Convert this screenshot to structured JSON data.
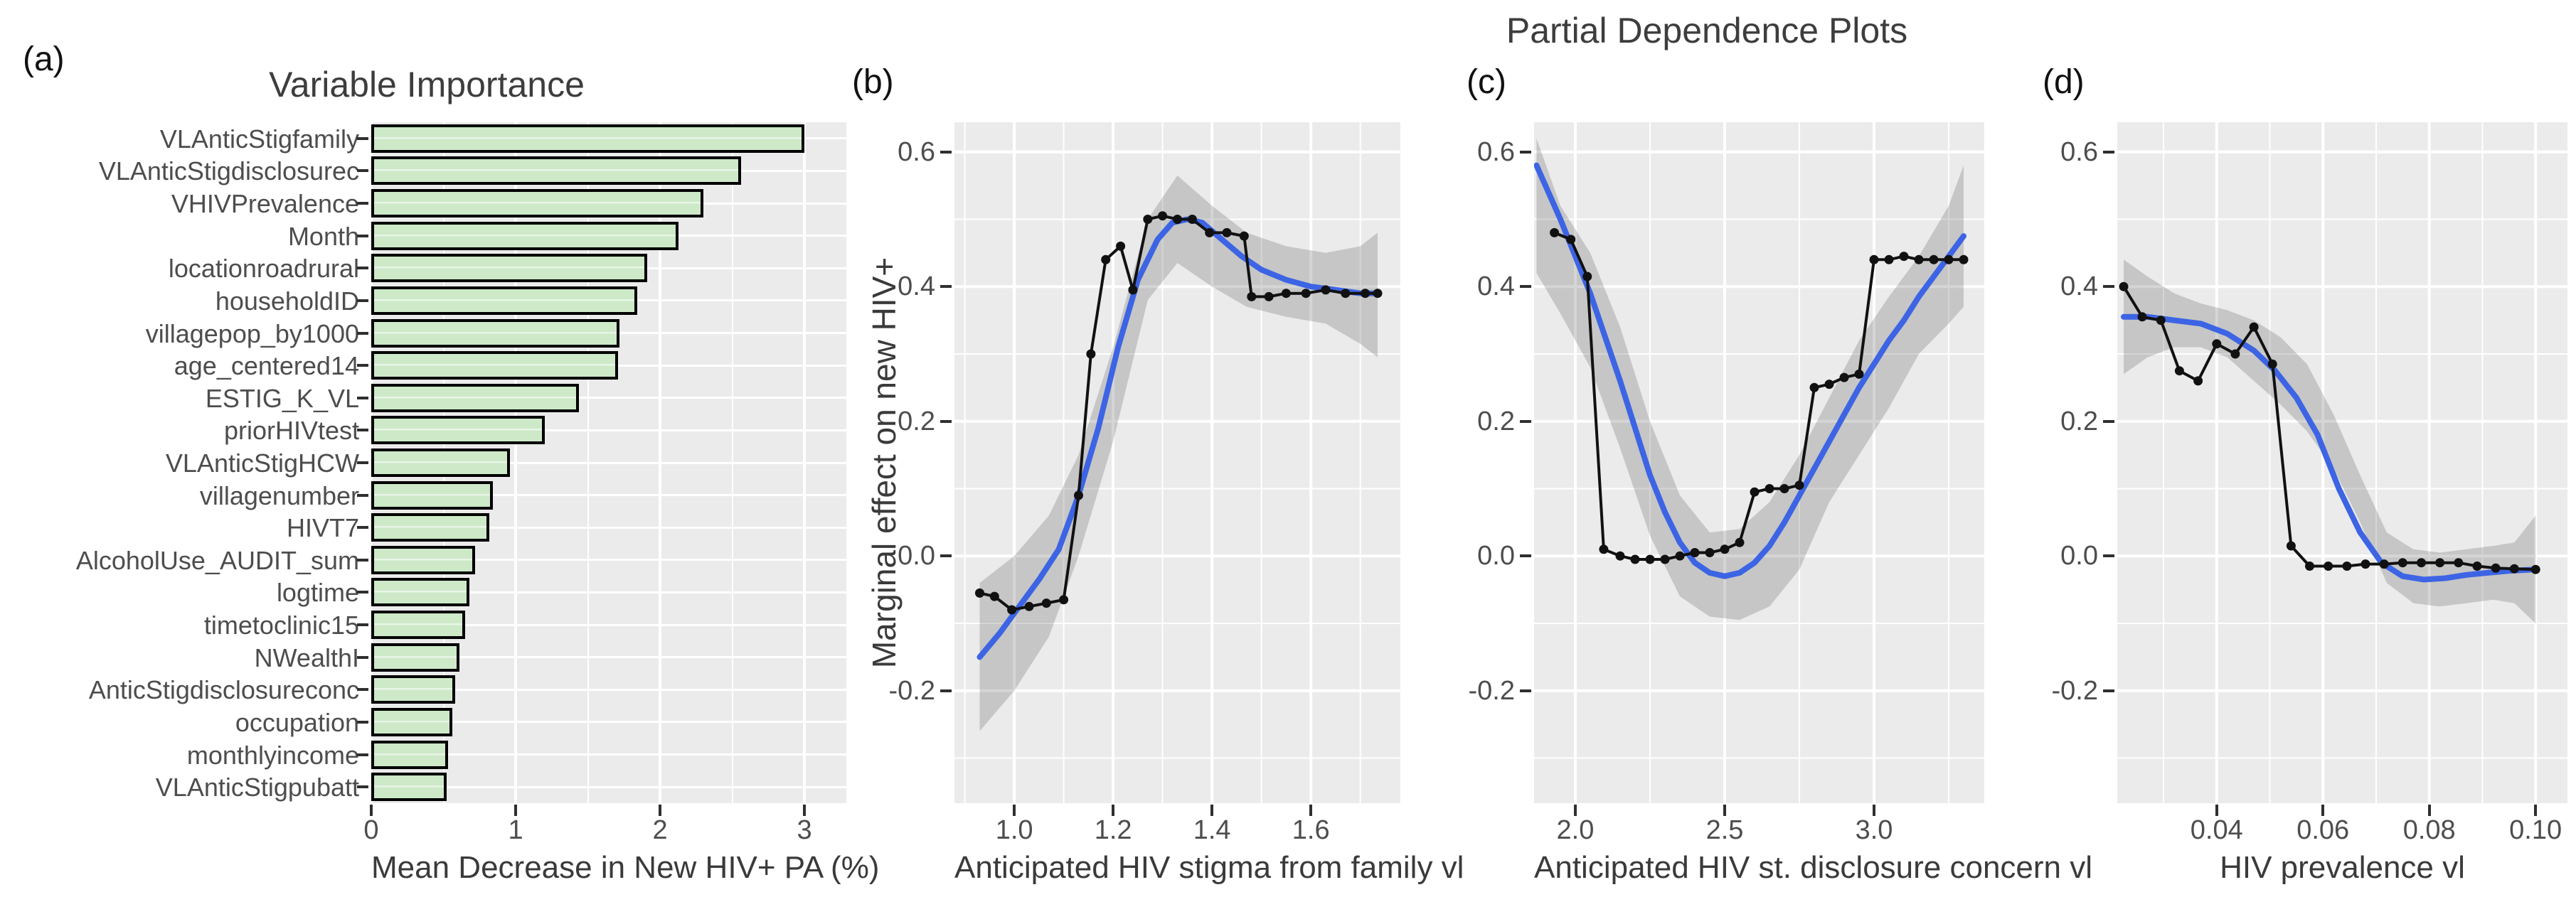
{
  "figure": {
    "title": "Partial Dependence Plots",
    "background": "#ffffff",
    "panel_bg": "#ebebeb",
    "grid_color": "#ffffff",
    "bar_fill": "#cde9c8",
    "bar_stroke": "#000000",
    "smooth_color": "#3c64e4",
    "band_color": "rgba(105,105,105,0.28)",
    "points_color": "#111111",
    "title_color": "#3d3d3d",
    "tick_text_color": "#4d4d4d"
  },
  "chart_data": [
    {
      "id": "a",
      "type": "bar",
      "panel_label": "(a)",
      "title": "Variable Importance",
      "xlabel": "Mean Decrease in New HIV+ PA (%)",
      "orientation": "horizontal",
      "grid": true,
      "categories": [
        "VLAnticStigfamily",
        "VLAnticStigdisclosurec",
        "VHIVPrevalence",
        "Month",
        "locationroadrural",
        "householdID",
        "villagepop_by1000",
        "age_centered14",
        "ESTIG_K_VL",
        "priorHIVtest",
        "VLAnticStigHCW",
        "villagenumber",
        "HIVT7",
        "AlcoholUse_AUDIT_sum",
        "logtime",
        "timetoclinic15",
        "NWealthI",
        "AnticStigdisclosureconc",
        "occupation",
        "monthlyincome",
        "VLAnticStigpubatt"
      ],
      "values": [
        3.0,
        2.56,
        2.3,
        2.13,
        1.91,
        1.84,
        1.72,
        1.71,
        1.44,
        1.2,
        0.96,
        0.84,
        0.82,
        0.72,
        0.68,
        0.65,
        0.61,
        0.58,
        0.56,
        0.53,
        0.52
      ],
      "xticks": [
        {
          "v": 0,
          "label": "0"
        },
        {
          "v": 1,
          "label": "1"
        },
        {
          "v": 2,
          "label": "2"
        },
        {
          "v": 3,
          "label": "3"
        }
      ],
      "xlim": [
        0,
        3.29
      ]
    },
    {
      "id": "b",
      "type": "line",
      "panel_label": "(b)",
      "xlabel": "Anticipated HIV stigma from family vl",
      "ylabel": "Marginal effect on new HIV+",
      "grid": true,
      "xlim": [
        0.879,
        1.781
      ],
      "ylim": [
        -0.367,
        0.644
      ],
      "xticks": [
        {
          "v": 1.0,
          "label": "1.0"
        },
        {
          "v": 1.2,
          "label": "1.2"
        },
        {
          "v": 1.4,
          "label": "1.4"
        },
        {
          "v": 1.6,
          "label": "1.6"
        }
      ],
      "yticks": [
        {
          "v": 0.6,
          "label": "0.6"
        },
        {
          "v": 0.4,
          "label": "0.4"
        },
        {
          "v": 0.2,
          "label": "0.2"
        },
        {
          "v": 0.0,
          "label": "0.0"
        },
        {
          "v": -0.2,
          "label": "-0.2"
        }
      ],
      "band": {
        "x": [
          0.93,
          1.0,
          1.07,
          1.13,
          1.2,
          1.27,
          1.33,
          1.4,
          1.47,
          1.55,
          1.63,
          1.7,
          1.735
        ],
        "upper": [
          -0.04,
          0.0,
          0.06,
          0.15,
          0.31,
          0.5,
          0.565,
          0.52,
          0.48,
          0.46,
          0.45,
          0.46,
          0.48
        ],
        "lower": [
          -0.26,
          -0.2,
          -0.12,
          0.0,
          0.17,
          0.38,
          0.435,
          0.4,
          0.37,
          0.355,
          0.345,
          0.315,
          0.295
        ]
      },
      "series": [
        {
          "name": "partial-dependence-points",
          "x": [
            0.93,
            0.96,
            0.995,
            1.03,
            1.065,
            1.1,
            1.13,
            1.155,
            1.185,
            1.215,
            1.24,
            1.27,
            1.3,
            1.33,
            1.36,
            1.395,
            1.43,
            1.465,
            1.48,
            1.515,
            1.55,
            1.59,
            1.63,
            1.67,
            1.71,
            1.735
          ],
          "y": [
            -0.055,
            -0.06,
            -0.08,
            -0.075,
            -0.07,
            -0.065,
            0.09,
            0.3,
            0.44,
            0.46,
            0.395,
            0.5,
            0.505,
            0.5,
            0.5,
            0.48,
            0.48,
            0.475,
            0.385,
            0.385,
            0.39,
            0.39,
            0.395,
            0.39,
            0.39,
            0.39
          ]
        },
        {
          "name": "smooth-fit",
          "x": [
            0.93,
            0.97,
            1.01,
            1.05,
            1.09,
            1.13,
            1.17,
            1.21,
            1.25,
            1.29,
            1.32,
            1.35,
            1.38,
            1.42,
            1.46,
            1.5,
            1.55,
            1.6,
            1.65,
            1.7,
            1.735
          ],
          "y": [
            -0.15,
            -0.115,
            -0.075,
            -0.035,
            0.01,
            0.09,
            0.19,
            0.31,
            0.41,
            0.47,
            0.495,
            0.5,
            0.495,
            0.47,
            0.445,
            0.425,
            0.41,
            0.4,
            0.395,
            0.39,
            0.39
          ]
        }
      ]
    },
    {
      "id": "c",
      "type": "line",
      "panel_label": "(c)",
      "xlabel": "Anticipated HIV st. disclosure concern vl",
      "ylabel": "",
      "grid": true,
      "xlim": [
        1.862,
        3.369
      ],
      "ylim": [
        -0.367,
        0.644
      ],
      "xticks": [
        {
          "v": 2.0,
          "label": "2.0"
        },
        {
          "v": 2.5,
          "label": "2.5"
        },
        {
          "v": 3.0,
          "label": "3.0"
        }
      ],
      "yticks": [
        {
          "v": 0.6,
          "label": "0.6"
        },
        {
          "v": 0.4,
          "label": "0.4"
        },
        {
          "v": 0.2,
          "label": "0.2"
        },
        {
          "v": 0.0,
          "label": "0.0"
        },
        {
          "v": -0.2,
          "label": "-0.2"
        }
      ],
      "band": {
        "x": [
          1.87,
          1.95,
          2.05,
          2.15,
          2.25,
          2.35,
          2.45,
          2.55,
          2.65,
          2.75,
          2.85,
          2.95,
          3.05,
          3.15,
          3.25,
          3.3
        ],
        "upper": [
          0.62,
          0.52,
          0.45,
          0.34,
          0.2,
          0.09,
          0.035,
          0.04,
          0.08,
          0.15,
          0.235,
          0.32,
          0.385,
          0.445,
          0.52,
          0.58
        ],
        "lower": [
          0.42,
          0.36,
          0.28,
          0.16,
          0.03,
          -0.06,
          -0.09,
          -0.095,
          -0.075,
          -0.02,
          0.08,
          0.15,
          0.22,
          0.3,
          0.345,
          0.37
        ]
      },
      "series": [
        {
          "name": "partial-dependence-points",
          "x": [
            1.93,
            1.985,
            2.04,
            2.095,
            2.15,
            2.2,
            2.25,
            2.3,
            2.35,
            2.4,
            2.45,
            2.5,
            2.55,
            2.6,
            2.65,
            2.7,
            2.75,
            2.8,
            2.85,
            2.9,
            2.95,
            3.0,
            3.05,
            3.1,
            3.15,
            3.2,
            3.25,
            3.3
          ],
          "y": [
            0.48,
            0.47,
            0.415,
            0.01,
            0.0,
            -0.005,
            -0.005,
            -0.005,
            0.0,
            0.005,
            0.005,
            0.01,
            0.02,
            0.095,
            0.1,
            0.1,
            0.105,
            0.25,
            0.255,
            0.265,
            0.27,
            0.44,
            0.44,
            0.445,
            0.44,
            0.44,
            0.44,
            0.44
          ]
        },
        {
          "name": "smooth-fit",
          "x": [
            1.87,
            1.95,
            2.0,
            2.05,
            2.1,
            2.15,
            2.2,
            2.25,
            2.3,
            2.35,
            2.4,
            2.45,
            2.5,
            2.55,
            2.6,
            2.65,
            2.7,
            2.75,
            2.8,
            2.85,
            2.9,
            2.95,
            3.0,
            3.05,
            3.1,
            3.15,
            3.2,
            3.25,
            3.3
          ],
          "y": [
            0.58,
            0.5,
            0.445,
            0.39,
            0.325,
            0.26,
            0.19,
            0.12,
            0.065,
            0.02,
            -0.01,
            -0.025,
            -0.03,
            -0.025,
            -0.01,
            0.015,
            0.05,
            0.09,
            0.13,
            0.17,
            0.21,
            0.25,
            0.285,
            0.32,
            0.35,
            0.385,
            0.415,
            0.445,
            0.475
          ]
        }
      ]
    },
    {
      "id": "d",
      "type": "line",
      "panel_label": "(d)",
      "xlabel": "HIV prevalence vl",
      "ylabel": "",
      "grid": true,
      "xlim": [
        0.0213,
        0.106
      ],
      "ylim": [
        -0.367,
        0.644
      ],
      "xticks": [
        {
          "v": 0.04,
          "label": "0.04"
        },
        {
          "v": 0.06,
          "label": "0.06"
        },
        {
          "v": 0.08,
          "label": "0.08"
        },
        {
          "v": 0.1,
          "label": "0.10"
        }
      ],
      "yticks": [
        {
          "v": 0.6,
          "label": "0.6"
        },
        {
          "v": 0.4,
          "label": "0.4"
        },
        {
          "v": 0.2,
          "label": "0.2"
        },
        {
          "v": 0.0,
          "label": "0.0"
        },
        {
          "v": -0.2,
          "label": "-0.2"
        }
      ],
      "band": {
        "x": [
          0.0225,
          0.027,
          0.032,
          0.037,
          0.042,
          0.047,
          0.052,
          0.057,
          0.062,
          0.067,
          0.072,
          0.077,
          0.082,
          0.087,
          0.092,
          0.096,
          0.1
        ],
        "upper": [
          0.44,
          0.415,
          0.39,
          0.375,
          0.365,
          0.35,
          0.325,
          0.285,
          0.21,
          0.12,
          0.035,
          0.01,
          0.005,
          0.01,
          0.015,
          0.02,
          0.06
        ],
        "lower": [
          0.27,
          0.295,
          0.31,
          0.31,
          0.295,
          0.26,
          0.225,
          0.185,
          0.13,
          0.05,
          -0.04,
          -0.07,
          -0.075,
          -0.07,
          -0.065,
          -0.07,
          -0.1
        ]
      },
      "series": [
        {
          "name": "partial-dependence-points",
          "x": [
            0.0225,
            0.026,
            0.0295,
            0.033,
            0.0365,
            0.04,
            0.0435,
            0.047,
            0.0505,
            0.054,
            0.0575,
            0.061,
            0.0645,
            0.068,
            0.0715,
            0.075,
            0.0785,
            0.082,
            0.0855,
            0.089,
            0.0925,
            0.096,
            0.1
          ],
          "y": [
            0.4,
            0.355,
            0.35,
            0.275,
            0.26,
            0.315,
            0.3,
            0.34,
            0.285,
            0.015,
            -0.015,
            -0.015,
            -0.015,
            -0.012,
            -0.012,
            -0.01,
            -0.01,
            -0.01,
            -0.01,
            -0.015,
            -0.018,
            -0.019,
            -0.02
          ]
        },
        {
          "name": "smooth-fit",
          "x": [
            0.0225,
            0.027,
            0.032,
            0.037,
            0.042,
            0.047,
            0.051,
            0.055,
            0.059,
            0.063,
            0.067,
            0.071,
            0.075,
            0.079,
            0.083,
            0.087,
            0.091,
            0.095,
            0.1
          ],
          "y": [
            0.355,
            0.355,
            0.35,
            0.345,
            0.33,
            0.305,
            0.275,
            0.235,
            0.18,
            0.1,
            0.035,
            -0.01,
            -0.03,
            -0.035,
            -0.033,
            -0.028,
            -0.025,
            -0.022,
            -0.02
          ]
        }
      ]
    }
  ]
}
